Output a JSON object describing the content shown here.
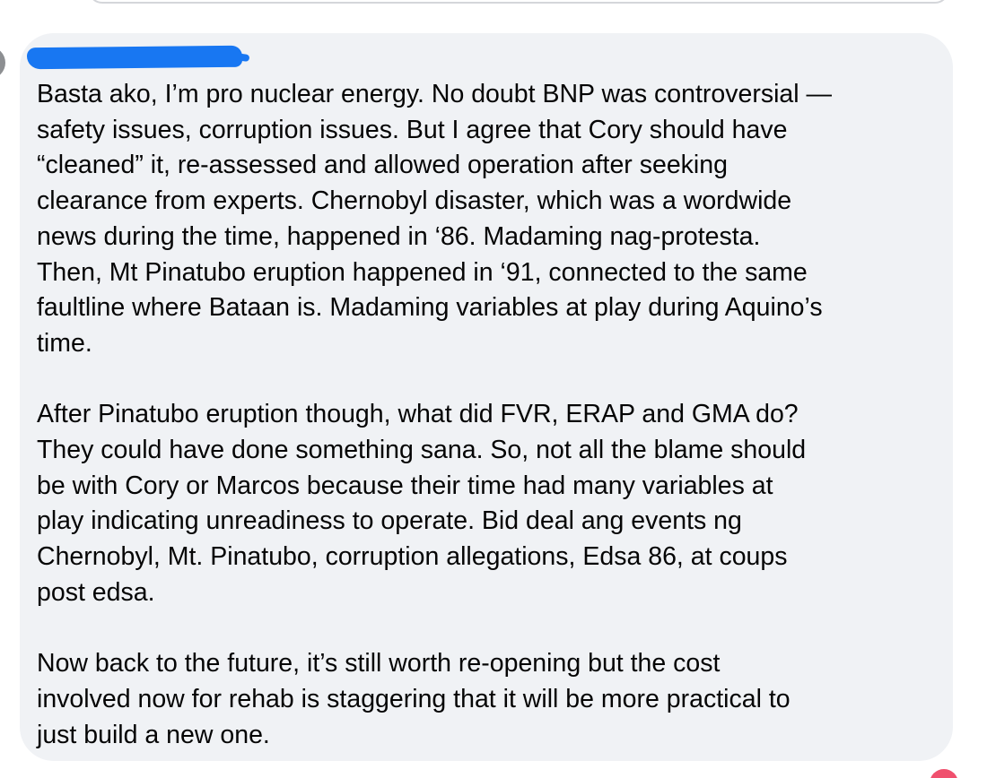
{
  "comment": {
    "paragraphs": [
      "Basta ako, I’m pro nuclear energy. No doubt BNP was controversial —\nsafety issues, corruption issues. But I agree that Cory should have\n“cleaned” it, re-assessed and allowed operation after seeking\nclearance from experts. Chernobyl disaster, which was a wordwide\nnews during the time, happened in ‘86. Madaming nag-protesta.\nThen, Mt Pinatubo eruption happened in ‘91, connected to the same\nfaultline where Bataan is. Madaming variables at play during Aquino’s\ntime.",
      "After Pinatubo eruption though, what did FVR, ERAP and GMA do?\nThey could have done something sana. So, not all the blame should\nbe with Cory or Marcos because their time had many variables at\nplay indicating unreadiness to operate. Bid deal ang events ng\nChernobyl, Mt. Pinatubo, corruption allegations, Edsa 86, at coups\npost edsa.",
      "Now back to the future, it’s still worth re-opening but the cost\ninvolved now for rehab is staggering that it will be more practical to\njust build a new one."
    ]
  },
  "colors": {
    "bubble_bg": "#f0f2f5",
    "redaction": "#1877f2",
    "text": "#050505",
    "reaction": "#f0506e"
  }
}
